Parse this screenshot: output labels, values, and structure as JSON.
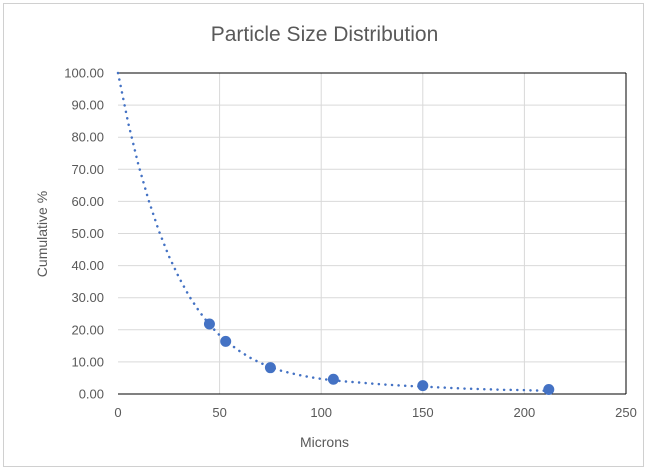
{
  "chart_data": {
    "type": "scatter",
    "title": "Particle Size Distribution",
    "xlabel": "Microns",
    "ylabel": "Cumulative %",
    "xlim": [
      0,
      250
    ],
    "ylim": [
      0,
      100
    ],
    "x_ticks": [
      "0",
      "50",
      "100",
      "150",
      "200",
      "250"
    ],
    "y_ticks": [
      "0.00",
      "10.00",
      "20.00",
      "30.00",
      "40.00",
      "50.00",
      "60.00",
      "70.00",
      "80.00",
      "90.00",
      "100.00"
    ],
    "grid": true,
    "legend": "none",
    "series": [
      {
        "x": [
          45,
          53,
          75,
          106,
          150,
          212
        ],
        "y": [
          21.8,
          16.4,
          8.2,
          4.6,
          2.6,
          1.4
        ]
      }
    ],
    "trendline": {
      "style": "dotted",
      "x": [
        0,
        5,
        10,
        15,
        20,
        25,
        30,
        35,
        40,
        45,
        50,
        55,
        60,
        65,
        70,
        75,
        80,
        85,
        90,
        95,
        100,
        110,
        120,
        130,
        140,
        150,
        160,
        170,
        180,
        190,
        200,
        210
      ],
      "y": [
        100,
        84.5,
        71.5,
        60.5,
        51.0,
        43.0,
        36.3,
        30.5,
        25.7,
        21.6,
        18.3,
        15.6,
        13.3,
        11.3,
        9.7,
        8.4,
        7.3,
        6.5,
        5.8,
        5.2,
        4.7,
        4.0,
        3.5,
        3.0,
        2.6,
        2.3,
        2.0,
        1.7,
        1.5,
        1.3,
        1.2,
        1.0
      ]
    },
    "colors": {
      "marker": "#4472c4",
      "trendline": "#4472c4",
      "gridline": "#d9d9d9",
      "axis": "#000000",
      "text": "#595959"
    }
  }
}
